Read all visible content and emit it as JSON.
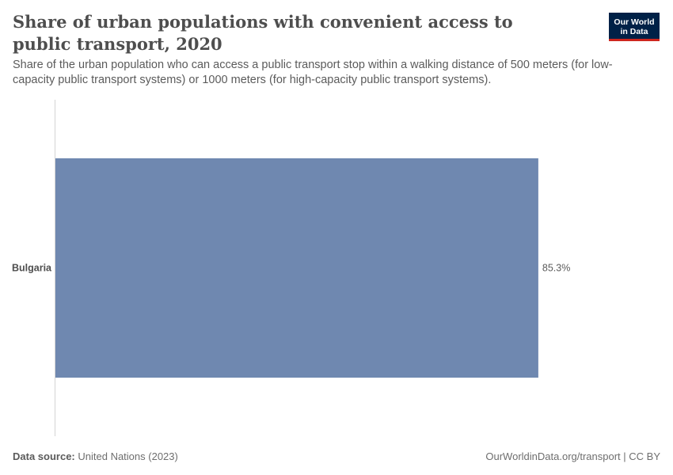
{
  "header": {
    "title": "Share of urban populations with convenient access to public transport, 2020",
    "subtitle": "Share of the urban population who can access a public transport stop within a walking distance of 500 meters (for low-capacity public transport systems) or 1000 meters (for high-capacity public transport systems)."
  },
  "logo": {
    "line1": "Our World",
    "line2": "in Data"
  },
  "footer": {
    "source_label": "Data source:",
    "source_value": "United Nations (2023)",
    "link": "OurWorldinData.org/transport | CC BY"
  },
  "colors": {
    "bar": "#6f88b0",
    "axis": "#d4d4d4"
  },
  "chart_data": {
    "type": "bar",
    "orientation": "horizontal",
    "title": "Share of urban populations with convenient access to public transport, 2020",
    "categories": [
      "Bulgaria"
    ],
    "values": [
      85.3
    ],
    "value_labels": [
      "85.3%"
    ],
    "unit": "%",
    "xlim": [
      0,
      100
    ],
    "xlabel": "",
    "ylabel": ""
  }
}
